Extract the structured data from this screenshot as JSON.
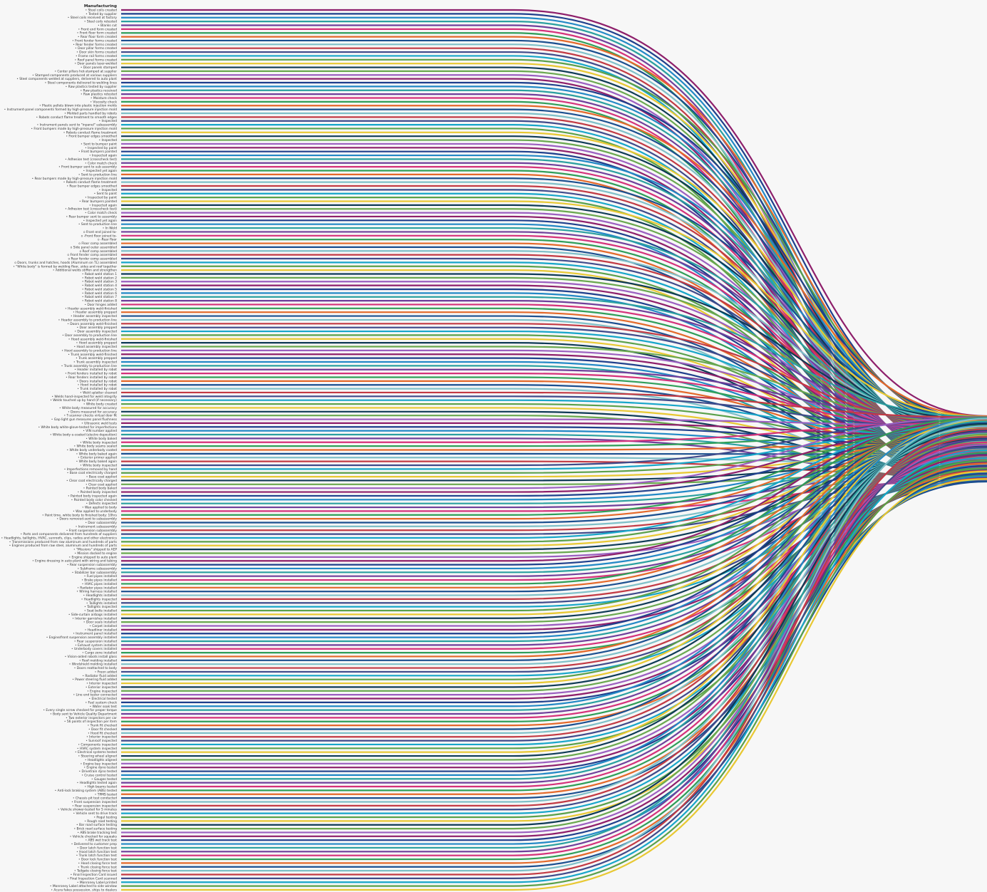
{
  "title": "Manufacturing",
  "bullet_glyph": "•",
  "palette": [
    "#8e1f6b",
    "#1f3f8c",
    "#2288c6",
    "#2aa0a0",
    "#6f3f9a",
    "#d5317a",
    "#2f9e58",
    "#e4692a",
    "#1b4f8f",
    "#7fc0c8",
    "#c23a44",
    "#3f4a8a",
    "#17a6c9",
    "#5aa04a",
    "#e8c832",
    "#0e3a55",
    "#6aa84f",
    "#9b5fc0"
  ],
  "steps": [
    {
      "label": "Steel coils created",
      "marker": "•"
    },
    {
      "label": "Tested by supplier",
      "marker": "•"
    },
    {
      "label": "Steel coils received at factory",
      "marker": "•"
    },
    {
      "label": "Steel coils retested",
      "marker": "•"
    },
    {
      "label": "Blanks cut",
      "marker": "•"
    },
    {
      "label": "Front end form created",
      "marker": "•"
    },
    {
      "label": "Front floor form created",
      "marker": "•"
    },
    {
      "label": "Rear floor form created",
      "marker": "•"
    },
    {
      "label": "Front fender forms created",
      "marker": "•"
    },
    {
      "label": "Rear fender forms created",
      "marker": "•"
    },
    {
      "label": "Door pillar forms created",
      "marker": "•"
    },
    {
      "label": "Door skin forms created",
      "marker": "•"
    },
    {
      "label": "Frame rail forms created",
      "marker": "•"
    },
    {
      "label": "Roof panel forms created",
      "marker": "•"
    },
    {
      "label": "Door panels laser-welded",
      "marker": "•"
    },
    {
      "label": "Door panels stamped",
      "marker": "•"
    },
    {
      "label": "Center pillars hot-stamped at supplier",
      "marker": "•"
    },
    {
      "label": "Stamped components produced at various suppliers",
      "marker": "•"
    },
    {
      "label": "Steel components welded at suppliers, delivered to auto plant",
      "marker": "•"
    },
    {
      "label": "Steel components delivered to welding lines",
      "marker": "•"
    },
    {
      "label": "Raw plastics tested by supplier",
      "marker": "•"
    },
    {
      "label": "Raw plastics received",
      "marker": "•"
    },
    {
      "label": "Raw plastics retested",
      "marker": "•"
    },
    {
      "label": "Moisture check",
      "marker": "•"
    },
    {
      "label": "Viscosity check",
      "marker": "•"
    },
    {
      "label": "Plastic pellets blown into plastic injection molds",
      "marker": "•"
    },
    {
      "label": "Instrument-panel components formed by high-pressure injection mold",
      "marker": "•"
    },
    {
      "label": "Molded parts handled by robots",
      "marker": "•"
    },
    {
      "label": "Robots conduct flame treatment to smooth edges",
      "marker": "•"
    },
    {
      "label": "Inspected",
      "marker": "•"
    },
    {
      "label": "Instrument panels sent to \"inpanel\" subassembly",
      "marker": "•"
    },
    {
      "label": "Front bumpers made by high-pressure injection mold",
      "marker": "•"
    },
    {
      "label": "Robots conduct flame treatment",
      "marker": "•"
    },
    {
      "label": "Front bumper edges smoothed",
      "marker": "•"
    },
    {
      "label": "Inspected",
      "marker": "•"
    },
    {
      "label": "Sent to bumper paint",
      "marker": "•"
    },
    {
      "label": "Inspected by paint",
      "marker": "•"
    },
    {
      "label": "Front bumpers painted",
      "marker": "•"
    },
    {
      "label": "Inspected again",
      "marker": "•"
    },
    {
      "label": "Adhesion test (crosscheck test)",
      "marker": "•"
    },
    {
      "label": "Color match check",
      "marker": "•"
    },
    {
      "label": "Front bumper sent to sub assembly",
      "marker": "•"
    },
    {
      "label": "Inspected yet again",
      "marker": "•"
    },
    {
      "label": "Sent to production line",
      "marker": "•"
    },
    {
      "label": "Rear bumpers made by high-pressure injection mold",
      "marker": "•"
    },
    {
      "label": "Robots conduct flame treatment",
      "marker": "•"
    },
    {
      "label": "Rear bumper edges smoothed",
      "marker": "•"
    },
    {
      "label": "Inspected",
      "marker": "•"
    },
    {
      "label": "Sent to paint",
      "marker": "•"
    },
    {
      "label": "Inspected by paint",
      "marker": "•"
    },
    {
      "label": "Rear bumpers painted",
      "marker": "•"
    },
    {
      "label": "Inspected again",
      "marker": "•"
    },
    {
      "label": "Adhesion test (crosscheck test)",
      "marker": "•"
    },
    {
      "label": "Color match check",
      "marker": "•"
    },
    {
      "label": "Rear bumper sent to assembly",
      "marker": "•"
    },
    {
      "label": "Inspected yet again",
      "marker": "•"
    },
    {
      "label": "Sent to production line",
      "marker": "•"
    },
    {
      "label": "In Weld",
      "marker": "•"
    },
    {
      "label": "Front end joined to-",
      "marker": "o"
    },
    {
      "label": "-Front floor joined to-",
      "marker": "o"
    },
    {
      "label": "-Rear floor",
      "marker": "o"
    },
    {
      "label": "Floor comp assembled",
      "marker": "o"
    },
    {
      "label": "Side panel outer assembled",
      "marker": "o"
    },
    {
      "label": "Roof comp assembled",
      "marker": "o"
    },
    {
      "label": "Front fender comp assembled",
      "marker": "o"
    },
    {
      "label": "Rear fender comp assembled",
      "marker": "o"
    },
    {
      "label": "Doors, trunks and hatches, hoods (Aluminum on TL) assembled",
      "marker": "o"
    },
    {
      "label": "\"White body\" is formed by welding floor, sides and roof together",
      "marker": "•"
    },
    {
      "label": "Additional welds stiffen and strengthen",
      "marker": "•"
    },
    {
      "label": "Robot weld station 1",
      "marker": "•"
    },
    {
      "label": "Robot weld station 2",
      "marker": "•"
    },
    {
      "label": "Robot weld station 3",
      "marker": "•"
    },
    {
      "label": "Robot weld station 4",
      "marker": "•"
    },
    {
      "label": "Robot weld station 5",
      "marker": "•"
    },
    {
      "label": "Robot weld station 6",
      "marker": "•"
    },
    {
      "label": "Robot weld station 7",
      "marker": "•"
    },
    {
      "label": "Robot weld station 8",
      "marker": "•"
    },
    {
      "label": "Door hinges added",
      "marker": "•"
    },
    {
      "label": "Header assembly weld-finished",
      "marker": "•"
    },
    {
      "label": "Header assembly prepped",
      "marker": "•"
    },
    {
      "label": "Header assembly inspected",
      "marker": "•"
    },
    {
      "label": "Header assembly to production line",
      "marker": "•"
    },
    {
      "label": "Doors assembly weld-finished",
      "marker": "•"
    },
    {
      "label": "Door assembly prepped",
      "marker": "•"
    },
    {
      "label": "Door assembly inspected",
      "marker": "•"
    },
    {
      "label": "Door assembly to production line",
      "marker": "•"
    },
    {
      "label": "Hood assembly weld-finished",
      "marker": "•"
    },
    {
      "label": "Hood assembly prepped",
      "marker": "•"
    },
    {
      "label": "Hood assembly inspected",
      "marker": "•"
    },
    {
      "label": "Hood assembly to production line",
      "marker": "•"
    },
    {
      "label": "Trunk assembly weld-finished",
      "marker": "•"
    },
    {
      "label": "Trunk assembly prepped",
      "marker": "•"
    },
    {
      "label": "Trunk assembly inspected",
      "marker": "•"
    },
    {
      "label": "Trunk assembly to production line",
      "marker": "•"
    },
    {
      "label": "Header installed by robot",
      "marker": "•"
    },
    {
      "label": "Front fenders installed by robot",
      "marker": "•"
    },
    {
      "label": "Rear fenders installed by robot",
      "marker": "•"
    },
    {
      "label": "Doors installed by robot",
      "marker": "•"
    },
    {
      "label": "Hood installed by robot",
      "marker": "•"
    },
    {
      "label": "Trunk installed by robot",
      "marker": "•"
    },
    {
      "label": "Weld splatter cleaned",
      "marker": "•"
    },
    {
      "label": "Welds hand-inspected for weld integrity",
      "marker": "•"
    },
    {
      "label": "Welds touched up by hand (if necessary)",
      "marker": "•"
    },
    {
      "label": "White body created",
      "marker": "•"
    },
    {
      "label": "White body measured for accuracy",
      "marker": "•"
    },
    {
      "label": "Doors measured for accuracy",
      "marker": "•"
    },
    {
      "label": "T-scanner checks virtual door fit",
      "marker": "•"
    },
    {
      "label": "Gap light gun measures panel flushness",
      "marker": "•"
    },
    {
      "label": "Ultrasonic weld tests",
      "marker": "•"
    },
    {
      "label": "White body white-glove-tested for imperfections",
      "marker": "•"
    },
    {
      "label": "VIN number applied",
      "marker": "•"
    },
    {
      "label": "White body e-coated (electro deposition)",
      "marker": "•"
    },
    {
      "label": "White body baked",
      "marker": "•"
    },
    {
      "label": "White body inspected",
      "marker": "•"
    },
    {
      "label": "White body seams sealed",
      "marker": "•"
    },
    {
      "label": "White body underbody coated",
      "marker": "•"
    },
    {
      "label": "White body baked again",
      "marker": "•"
    },
    {
      "label": "Exterior primer applied",
      "marker": "•"
    },
    {
      "label": "White body baked again",
      "marker": "•"
    },
    {
      "label": "White body inspected",
      "marker": "•"
    },
    {
      "label": "Imperfections removed by hand",
      "marker": "•"
    },
    {
      "label": "Base coat electrically charged",
      "marker": "•"
    },
    {
      "label": "Base coat applied",
      "marker": "•"
    },
    {
      "label": "Clear coat electrically charged",
      "marker": "•"
    },
    {
      "label": "Clear coat applied",
      "marker": "•"
    },
    {
      "label": "Painted body baked",
      "marker": "•"
    },
    {
      "label": "Painted body inspected",
      "marker": "•"
    },
    {
      "label": "Painted body inspected again",
      "marker": "•"
    },
    {
      "label": "Painted body color checked",
      "marker": "•"
    },
    {
      "label": "Defects inspected",
      "marker": "•"
    },
    {
      "label": "Wax applied to body",
      "marker": "•"
    },
    {
      "label": "Wax applied to underbody",
      "marker": "•"
    },
    {
      "label": "Paint time, white body to finished body: 10hrs",
      "marker": "•"
    },
    {
      "label": "Doors removed-sent to subassembly",
      "marker": "•"
    },
    {
      "label": "Door subassembly",
      "marker": "•"
    },
    {
      "label": "Instrument subassembly",
      "marker": "•"
    },
    {
      "label": "Front suspension subassembly",
      "marker": "•"
    },
    {
      "label": "Parts and components delivered from hundreds of suppliers",
      "marker": "•"
    },
    {
      "label": "Headlights, taillights, HVAC, sunroofs, clips, radios and other electronics",
      "marker": "•"
    },
    {
      "label": "Transmissions produced from raw aluminum and hundreds of parts",
      "marker": "•"
    },
    {
      "label": "Engines produced from raw steel, aluminum and hundreds of parts",
      "marker": "•"
    },
    {
      "label": "\"Missions\" shipped to AEP",
      "marker": "•"
    },
    {
      "label": "Mission docked to engine",
      "marker": "•"
    },
    {
      "label": "Engine shipped to auto plant",
      "marker": "•"
    },
    {
      "label": "Engine dressing in auto plant with wiring and tubing",
      "marker": "•"
    },
    {
      "label": "Rear suspension subassembly",
      "marker": "•"
    },
    {
      "label": "Subframe subassembly",
      "marker": "•"
    },
    {
      "label": "Stabilizer bar subassembly",
      "marker": "•"
    },
    {
      "label": "Fuel pipes installed",
      "marker": "•"
    },
    {
      "label": "Brake pipes installed",
      "marker": "•"
    },
    {
      "label": "HVAC pipes installed",
      "marker": "•"
    },
    {
      "label": "Radiator pipes installed",
      "marker": "•"
    },
    {
      "label": "Wiring harness installed",
      "marker": "•"
    },
    {
      "label": "Headlights installed",
      "marker": "•"
    },
    {
      "label": "Headlights inspected",
      "marker": "•"
    },
    {
      "label": "Taillights installed",
      "marker": "•"
    },
    {
      "label": "Taillights inspected",
      "marker": "•"
    },
    {
      "label": "Seat belts installed",
      "marker": "•"
    },
    {
      "label": "Side-curtain airbags installed",
      "marker": "•"
    },
    {
      "label": "Interior garnishes installed",
      "marker": "•"
    },
    {
      "label": "Door seals installed",
      "marker": "•"
    },
    {
      "label": "Carpet installed",
      "marker": "•"
    },
    {
      "label": "Headliner installed",
      "marker": "•"
    },
    {
      "label": "Instrument panel installed",
      "marker": "•"
    },
    {
      "label": "Engine/front suspension assembly installed",
      "marker": "•"
    },
    {
      "label": "Rear suspension installed",
      "marker": "•"
    },
    {
      "label": "Exhaust system installed",
      "marker": "•"
    },
    {
      "label": "Underbody covers installed",
      "marker": "•"
    },
    {
      "label": "Cargo zone installed",
      "marker": "•"
    },
    {
      "label": "Vision-aided robots install glass",
      "marker": "•"
    },
    {
      "label": "Roof molding installed",
      "marker": "•"
    },
    {
      "label": "Windshield molding installed",
      "marker": "•"
    },
    {
      "label": "Doors reattached to body",
      "marker": "•"
    },
    {
      "label": "Freon added",
      "marker": "•"
    },
    {
      "label": "Radiator fluid added",
      "marker": "•"
    },
    {
      "label": "Power steering fluid added",
      "marker": "•"
    },
    {
      "label": "Interior inspected",
      "marker": "•"
    },
    {
      "label": "Exterior inspected",
      "marker": "•"
    },
    {
      "label": "Engine inspected",
      "marker": "•"
    },
    {
      "label": "Line end tester connected",
      "marker": "•"
    },
    {
      "label": "Electrical tested",
      "marker": "•"
    },
    {
      "label": "Fuel system check",
      "marker": "•"
    },
    {
      "label": "Water soak test",
      "marker": "•"
    },
    {
      "label": "Every single screw checked for proper torque",
      "marker": "•"
    },
    {
      "label": "Body sent to Vehicle Quality Department",
      "marker": "•"
    },
    {
      "label": "Two exterior inspectors per car",
      "marker": "•"
    },
    {
      "label": "56 points of inspection per item",
      "marker": "•"
    },
    {
      "label": "Trunk fit checked",
      "marker": "•"
    },
    {
      "label": "Door fit checked",
      "marker": "•"
    },
    {
      "label": "Hood fit checked",
      "marker": "•"
    },
    {
      "label": "Interior inspected",
      "marker": "•"
    },
    {
      "label": "Sunroof inspected",
      "marker": "•"
    },
    {
      "label": "Components inspected",
      "marker": "•"
    },
    {
      "label": "HVAC system inspected",
      "marker": "•"
    },
    {
      "label": "Electrical systems tested",
      "marker": "•"
    },
    {
      "label": "Steering wheel aligned",
      "marker": "•"
    },
    {
      "label": "Headlights aligned",
      "marker": "•"
    },
    {
      "label": "Engine bay inspected",
      "marker": "•"
    },
    {
      "label": "Engine dyno tested",
      "marker": "•"
    },
    {
      "label": "Drivetrain dyno tested",
      "marker": "•"
    },
    {
      "label": "Cruise control tested",
      "marker": "•"
    },
    {
      "label": "Gauges tested",
      "marker": "•"
    },
    {
      "label": "Headlights tested again",
      "marker": "•"
    },
    {
      "label": "High beams tested",
      "marker": "•"
    },
    {
      "label": "Anti-lock braking system (ABS) tested",
      "marker": "•"
    },
    {
      "label": "TPMS tested",
      "marker": "•"
    },
    {
      "label": "Chassis pit test conducted",
      "marker": "•"
    },
    {
      "label": "Front suspension inspected",
      "marker": "•"
    },
    {
      "label": "Rear suspension inspected",
      "marker": "•"
    },
    {
      "label": "Vehicle shower-tested for 5 minutes",
      "marker": "•"
    },
    {
      "label": "Vehicle sent to drive track",
      "marker": "•"
    },
    {
      "label": "Pogul testing",
      "marker": "•"
    },
    {
      "label": "Rough road testing",
      "marker": "•"
    },
    {
      "label": "Bar road surface testing",
      "marker": "•"
    },
    {
      "label": "Brick road surface testing",
      "marker": "•"
    },
    {
      "label": "ABS brake tracking test",
      "marker": "•"
    },
    {
      "label": "Vehicle checked for squeaks",
      "marker": "•"
    },
    {
      "label": "ABS wet track test",
      "marker": "•"
    },
    {
      "label": "Delivered to customer prep",
      "marker": "•"
    },
    {
      "label": "Door latch function test",
      "marker": "•"
    },
    {
      "label": "Hood latch function test",
      "marker": "•"
    },
    {
      "label": "Trunk latch function test",
      "marker": "•"
    },
    {
      "label": "Door lock function test",
      "marker": "•"
    },
    {
      "label": "Hood closing force test",
      "marker": "•"
    },
    {
      "label": "Trunk closing force test",
      "marker": "•"
    },
    {
      "label": "Tailgate closing force test",
      "marker": "•"
    },
    {
      "label": "Final Inspection Card issued",
      "marker": "•"
    },
    {
      "label": "Final Inspection Card scanned",
      "marker": "•"
    },
    {
      "label": "Monroney Label printed",
      "marker": "•"
    },
    {
      "label": "Monroney Label attached to side window",
      "marker": "•"
    },
    {
      "label": "Acura fakes possession, ships to dealers",
      "marker": "•"
    }
  ]
}
